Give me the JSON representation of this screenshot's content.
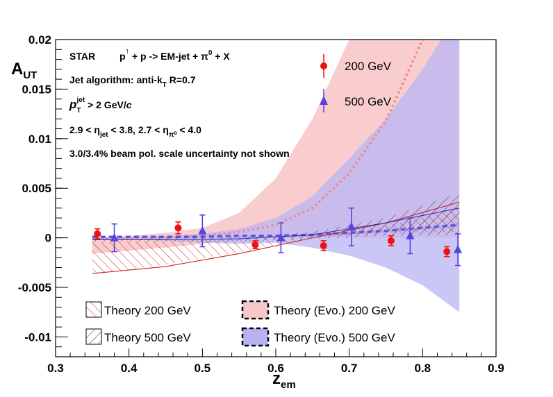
{
  "chart_data": {
    "type": "scatter",
    "xlabel_main": "z",
    "xlabel_sub": "em",
    "ylabel_main": "A",
    "ylabel_sub": "UT",
    "xlim": [
      0.3,
      0.9
    ],
    "ylim": [
      -0.012,
      0.02
    ],
    "x_ticks": [
      0.3,
      0.4,
      0.5,
      0.6,
      0.7,
      0.8,
      0.9
    ],
    "x_tick_labels": [
      "0.3",
      "0.4",
      "0.5",
      "0.6",
      "0.7",
      "0.8",
      "0.9"
    ],
    "y_ticks": [
      -0.01,
      -0.005,
      0,
      0.005,
      0.01,
      0.015,
      0.02
    ],
    "y_tick_labels": [
      "-0.01",
      "-0.005",
      "0",
      "0.005",
      "0.01",
      "0.015",
      "0.02"
    ],
    "annotations": {
      "line1": "STAR    p↑ + p -> EM-jet + π⁰ + X",
      "line2": "Jet algorithm: anti-k_T R=0.7",
      "line3": "p_T^jet > 2 GeV/c",
      "line4": "2.9 < η_jet < 3.8, 2.7 < η_π⁰ < 4.0",
      "line5": "3.0/3.4% beam pol. scale uncertainty not shown"
    },
    "series": [
      {
        "name": "200 GeV",
        "color": "#ee1111",
        "marker": "circle",
        "x": [
          0.357,
          0.467,
          0.572,
          0.665,
          0.757,
          0.833
        ],
        "y": [
          0.0004,
          0.001,
          -0.0007,
          -0.0008,
          -0.0003,
          -0.0014
        ],
        "yerr": [
          0.0005,
          0.0006,
          0.0004,
          0.0005,
          0.0005,
          0.0005
        ]
      },
      {
        "name": "500 GeV",
        "color": "#5544dd",
        "marker": "triangle",
        "x": [
          0.38,
          0.5,
          0.607,
          0.703,
          0.783,
          0.848
        ],
        "y": [
          0.0,
          0.0007,
          0.0,
          0.0011,
          0.0002,
          -0.0012
        ],
        "yerr": [
          0.0014,
          0.0016,
          0.0015,
          0.0019,
          0.0018,
          0.0016
        ]
      }
    ],
    "theory": [
      {
        "name": "Theory 200 GeV",
        "style": "hatch",
        "color": "#cc2222",
        "x": [
          0.35,
          0.45,
          0.55,
          0.65,
          0.75,
          0.85
        ],
        "upper": [
          -0.0004,
          -0.0003,
          -0.0001,
          0.0002,
          0.0012,
          0.003
        ],
        "lower": [
          -0.0037,
          -0.0027,
          -0.0015,
          0.0,
          0.0005,
          0.0006
        ],
        "center": [
          -0.0036,
          -0.0029,
          -0.0016,
          0.0,
          0.0015,
          0.0036
        ]
      },
      {
        "name": "Theory 500 GeV",
        "style": "hatch",
        "color": "#333366",
        "x": [
          0.35,
          0.45,
          0.55,
          0.65,
          0.75,
          0.85
        ],
        "upper": [
          0.0,
          0.0,
          0.0001,
          0.0006,
          0.002,
          0.0045
        ],
        "lower": [
          -0.0004,
          -0.0004,
          -0.0004,
          -0.0001,
          0.0002,
          0.0003
        ],
        "center": [
          -0.0002,
          -0.0002,
          -0.0001,
          0.0003,
          0.0015,
          0.003
        ]
      },
      {
        "name": "Theory (Evo.) 200 GeV",
        "style": "band",
        "color": "#f8c8c8",
        "x": [
          0.35,
          0.4,
          0.45,
          0.5,
          0.55,
          0.6,
          0.65,
          0.7,
          0.75,
          0.8,
          0.85
        ],
        "upper": [
          0.0,
          0.0002,
          0.0005,
          0.001,
          0.0025,
          0.006,
          0.012,
          0.02,
          0.026,
          0.03,
          0.034
        ],
        "lower": [
          -0.0016,
          -0.0013,
          -0.001,
          -0.0006,
          -0.0002,
          0.0,
          0.0,
          0.0,
          0.0,
          0.0,
          0.0
        ],
        "center": [
          -0.0001,
          -0.0001,
          0.0,
          0.0002,
          0.0006,
          0.0013,
          0.003,
          0.0065,
          0.0118,
          0.02,
          0.029
        ]
      },
      {
        "name": "Theory (Evo.) 500 GeV",
        "style": "band",
        "color": "#b8b4f4",
        "x": [
          0.35,
          0.4,
          0.45,
          0.5,
          0.55,
          0.6,
          0.65,
          0.7,
          0.75,
          0.8,
          0.85
        ],
        "upper": [
          0.0,
          0.0001,
          0.0002,
          0.0004,
          0.0009,
          0.002,
          0.0042,
          0.008,
          0.012,
          0.017,
          0.023
        ],
        "lower": [
          -0.0001,
          -0.0002,
          -0.0003,
          -0.0005,
          -0.0006,
          -0.0005,
          -0.001,
          -0.0018,
          -0.003,
          -0.0048,
          -0.0075
        ],
        "center": [
          0.0001,
          0.0001,
          0.0001,
          0.0001,
          0.0002,
          0.0002,
          0.0003,
          0.0005,
          0.0007,
          0.001,
          0.0013
        ]
      }
    ],
    "legend_labels": {
      "t200": "Theory 200 GeV",
      "t500": "Theory 500 GeV",
      "e200": "Theory (Evo.) 200 GeV",
      "e500": "Theory (Evo.) 500 GeV",
      "d200": "200 GeV",
      "d500": "500 GeV"
    }
  }
}
